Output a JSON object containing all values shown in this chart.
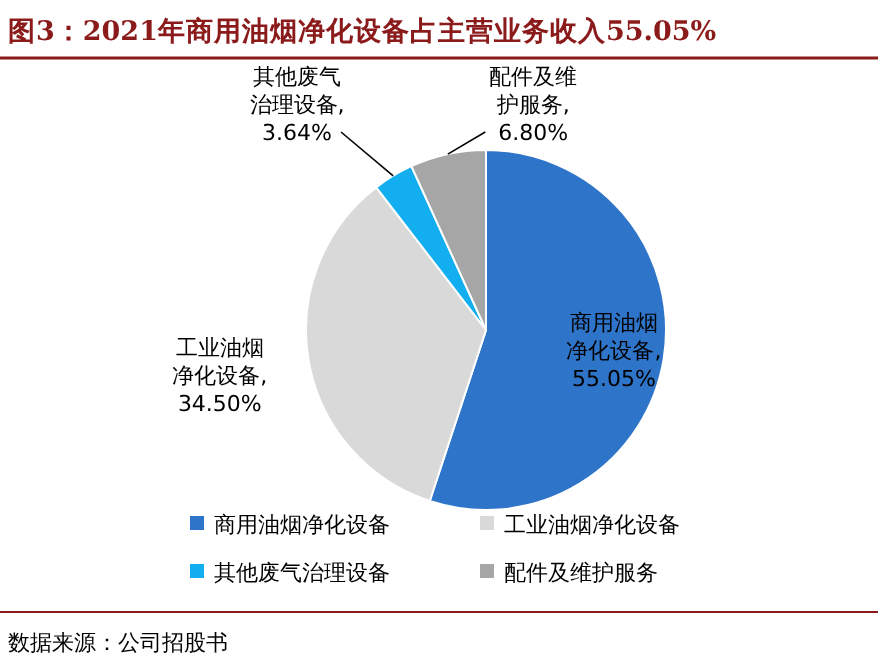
{
  "chart_data": {
    "type": "pie",
    "title": "图3：2021年商用油烟净化设备占主营业务收入55.05%",
    "categories": [
      "商用油烟净化设备",
      "工业油烟净化设备",
      "其他废气治理设备",
      "配件及维护服务"
    ],
    "values": [
      55.05,
      34.5,
      3.64,
      6.8
    ],
    "colors": [
      "#2e74c8",
      "#d9d9d9",
      "#12aef0",
      "#a6a6a6"
    ],
    "value_labels": [
      "商用油烟净化设备,55.05%",
      "工业油烟净化设备,34.50%",
      "其他废气治理设备,3.64%",
      "配件及维护服务,6.80%"
    ],
    "legend": "bottom",
    "annotations": [
      "数据来源：公司招股书"
    ]
  }
}
